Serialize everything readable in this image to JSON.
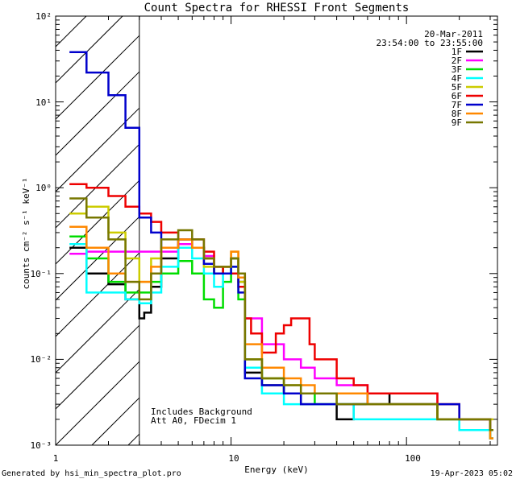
{
  "chart_data": {
    "type": "line",
    "title": "Count Spectra for RHESSI Front Segments",
    "xlabel": "Energy (keV)",
    "ylabel": "counts cm⁻² s⁻¹ keV⁻¹",
    "xscale": "log",
    "yscale": "log",
    "xlim": [
      1,
      330
    ],
    "ylim": [
      0.001,
      100
    ],
    "x_tick_labels": [
      "1",
      "10",
      "100"
    ],
    "y_tick_labels": [
      "10⁻³",
      "10⁻²",
      "10⁻¹",
      "10⁰",
      "10¹",
      "10²"
    ],
    "date": "20-Mar-2011",
    "time_range": "23:54:00 to 23:55:00",
    "shaded_region_max_keV": 3,
    "annotations": [
      "Includes Background",
      "Att A0, FDecim 1"
    ],
    "series": [
      {
        "name": "1F",
        "color": "#000000",
        "x": [
          1.2,
          1.5,
          2,
          2.5,
          3,
          3.2,
          3.5,
          4,
          5,
          6,
          7,
          8,
          9,
          10,
          11,
          12,
          15,
          20,
          25,
          30,
          40,
          50,
          60,
          80,
          100,
          150,
          200,
          300
        ],
        "values": [
          0.2,
          0.1,
          0.075,
          0.05,
          0.03,
          0.035,
          0.07,
          0.15,
          0.25,
          0.2,
          0.15,
          0.1,
          0.12,
          0.15,
          0.08,
          0.007,
          0.005,
          0.004,
          0.003,
          0.003,
          0.002,
          0.003,
          0.004,
          0.003,
          0.003,
          0.002,
          0.002,
          0.0012
        ]
      },
      {
        "name": "2F",
        "color": "#ff00ff",
        "x": [
          1.2,
          1.5,
          2,
          2.5,
          3,
          3.5,
          4,
          5,
          6,
          7,
          8,
          9,
          10,
          11,
          12,
          15,
          20,
          25,
          30,
          40,
          50,
          60,
          80,
          100,
          150,
          200,
          300
        ],
        "values": [
          0.17,
          0.18,
          0.18,
          0.18,
          0.18,
          0.18,
          0.18,
          0.22,
          0.2,
          0.16,
          0.12,
          0.12,
          0.15,
          0.1,
          0.03,
          0.015,
          0.01,
          0.008,
          0.006,
          0.005,
          0.005,
          0.004,
          0.004,
          0.004,
          0.003,
          0.002,
          0.0015
        ]
      },
      {
        "name": "3F",
        "color": "#00dd00",
        "x": [
          1.2,
          1.5,
          2,
          2.5,
          3,
          3.5,
          4,
          5,
          6,
          7,
          8,
          9,
          10,
          11,
          12,
          15,
          20,
          25,
          30,
          40,
          50,
          60,
          80,
          100,
          150,
          200,
          300
        ],
        "values": [
          0.27,
          0.15,
          0.08,
          0.06,
          0.06,
          0.08,
          0.1,
          0.14,
          0.1,
          0.05,
          0.04,
          0.08,
          0.15,
          0.05,
          0.01,
          0.006,
          0.004,
          0.004,
          0.003,
          0.003,
          0.003,
          0.003,
          0.003,
          0.003,
          0.002,
          0.002,
          0.0012
        ]
      },
      {
        "name": "4F",
        "color": "#00ffff",
        "x": [
          1.2,
          1.5,
          2,
          2.5,
          3,
          3.5,
          4,
          5,
          6,
          7,
          8,
          9,
          10,
          11,
          12,
          15,
          20,
          25,
          30,
          40,
          50,
          60,
          80,
          100,
          150,
          200,
          300
        ],
        "values": [
          0.22,
          0.06,
          0.06,
          0.05,
          0.045,
          0.06,
          0.12,
          0.2,
          0.15,
          0.1,
          0.07,
          0.1,
          0.12,
          0.07,
          0.008,
          0.004,
          0.003,
          0.003,
          0.003,
          0.003,
          0.002,
          0.002,
          0.002,
          0.002,
          0.002,
          0.0015,
          0.0012
        ]
      },
      {
        "name": "5F",
        "color": "#cccc00",
        "x": [
          1.2,
          1.5,
          2,
          2.5,
          3,
          3.5,
          4,
          5,
          6,
          7,
          8,
          9,
          10,
          11,
          12,
          15,
          20,
          25,
          30,
          40,
          50,
          60,
          80,
          100,
          150,
          200,
          300
        ],
        "values": [
          0.5,
          0.6,
          0.3,
          0.15,
          0.08,
          0.15,
          0.2,
          0.25,
          0.2,
          0.12,
          0.1,
          0.12,
          0.18,
          0.08,
          0.01,
          0.006,
          0.005,
          0.004,
          0.004,
          0.003,
          0.003,
          0.003,
          0.003,
          0.003,
          0.003,
          0.002,
          0.002
        ]
      },
      {
        "name": "6F",
        "color": "#ee0000",
        "x": [
          1.2,
          1.5,
          2,
          2.5,
          3,
          3.5,
          4,
          5,
          6,
          7,
          8,
          9,
          10,
          11,
          12,
          13,
          15,
          18,
          20,
          22,
          25,
          28,
          30,
          40,
          50,
          60,
          80,
          100,
          150,
          200,
          300
        ],
        "values": [
          1.1,
          1.0,
          0.8,
          0.6,
          0.5,
          0.4,
          0.3,
          0.25,
          0.25,
          0.18,
          0.12,
          0.1,
          0.1,
          0.07,
          0.03,
          0.02,
          0.012,
          0.02,
          0.025,
          0.03,
          0.03,
          0.015,
          0.01,
          0.006,
          0.005,
          0.004,
          0.004,
          0.004,
          0.003,
          0.002,
          0.0015
        ]
      },
      {
        "name": "7F",
        "color": "#0000cc",
        "x": [
          1.2,
          1.5,
          2,
          2.5,
          3,
          3.5,
          4,
          5,
          6,
          7,
          8,
          9,
          10,
          11,
          12,
          15,
          20,
          25,
          30,
          40,
          50,
          60,
          80,
          100,
          150,
          200,
          300
        ],
        "values": [
          38,
          22,
          12,
          5,
          0.45,
          0.3,
          0.2,
          0.25,
          0.2,
          0.13,
          0.1,
          0.1,
          0.12,
          0.06,
          0.006,
          0.005,
          0.004,
          0.003,
          0.003,
          0.003,
          0.003,
          0.003,
          0.003,
          0.003,
          0.003,
          0.002,
          0.0015
        ]
      },
      {
        "name": "8F",
        "color": "#ff8800",
        "x": [
          1.2,
          1.5,
          2,
          2.5,
          3,
          3.5,
          4,
          5,
          6,
          7,
          8,
          9,
          10,
          11,
          12,
          15,
          20,
          25,
          30,
          40,
          50,
          60,
          80,
          100,
          150,
          200,
          300
        ],
        "values": [
          0.35,
          0.2,
          0.1,
          0.08,
          0.08,
          0.12,
          0.2,
          0.25,
          0.2,
          0.15,
          0.12,
          0.12,
          0.18,
          0.09,
          0.015,
          0.008,
          0.006,
          0.005,
          0.004,
          0.004,
          0.004,
          0.003,
          0.003,
          0.003,
          0.002,
          0.002,
          0.0012
        ]
      },
      {
        "name": "9F",
        "color": "#777700",
        "x": [
          1.2,
          1.5,
          2,
          2.5,
          3,
          3.5,
          4,
          5,
          6,
          7,
          8,
          9,
          10,
          11,
          12,
          15,
          20,
          25,
          30,
          40,
          50,
          60,
          80,
          100,
          150,
          200,
          300
        ],
        "values": [
          0.75,
          0.45,
          0.25,
          0.08,
          0.05,
          0.1,
          0.25,
          0.32,
          0.25,
          0.15,
          0.12,
          0.12,
          0.15,
          0.1,
          0.01,
          0.006,
          0.005,
          0.004,
          0.004,
          0.003,
          0.003,
          0.003,
          0.003,
          0.003,
          0.002,
          0.002,
          0.0015
        ]
      }
    ]
  },
  "footer": {
    "left": "Generated by hsi_min_spectra_plot.pro",
    "right": "19-Apr-2023 05:02"
  }
}
